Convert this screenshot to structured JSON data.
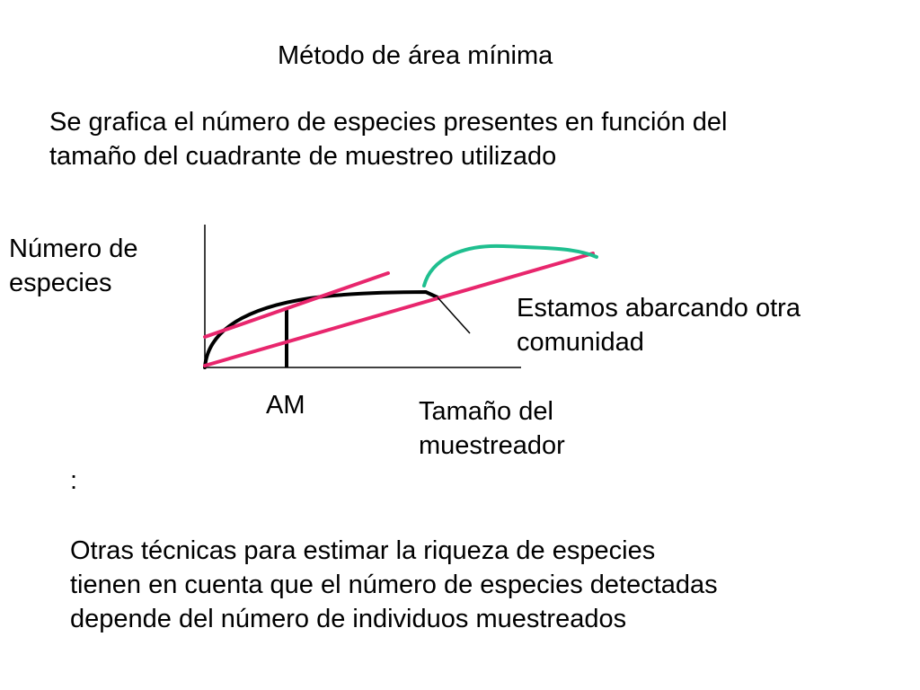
{
  "title": "Método de área mínima",
  "intro": "Se grafica el número de especies presentes en función del\ntamaño del cuadrante de muestreo utilizado",
  "diagram": {
    "y_axis_label": "Número de\nespecies",
    "x_axis_label": "Tamaño del\nmuestreador",
    "marker_label": "AM",
    "annotation": "Estamos abarcando otra\ncomunidad",
    "colors": {
      "axes": "#000000",
      "curve": "#000000",
      "tangent_lines": "#e8266d",
      "new_community_curve": "#1fbf8f",
      "pointer": "#000000"
    }
  },
  "colon": ":",
  "note": "Otras técnicas para estimar la riqueza de especies\ntienen en cuenta que el número de especies detectadas\ndepende del número de individuos muestreados"
}
